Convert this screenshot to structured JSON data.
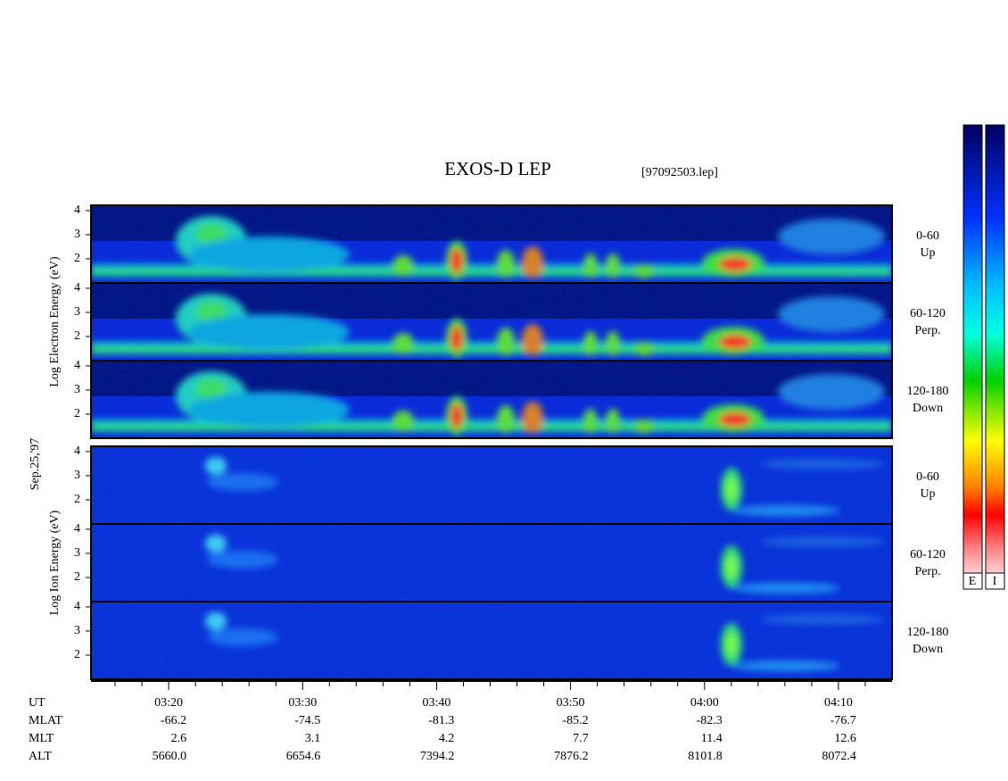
{
  "title": "EXOS-D LEP",
  "file": "[97092503.lep]",
  "date": "Sep.25,'97",
  "chart_data": [
    {
      "type": "spectrogram",
      "species": "electron",
      "ylabel": "Log Electron Energy (eV)",
      "ylim": [
        1,
        4.22
      ],
      "yticks": [
        2,
        3,
        4
      ],
      "panels": [
        {
          "range": "0-60",
          "direction": "Up"
        },
        {
          "range": "60-120",
          "direction": "Perp."
        },
        {
          "range": "120-180",
          "direction": "Down"
        }
      ]
    },
    {
      "type": "spectrogram",
      "species": "ion",
      "ylabel": "Log Ion Energy (eV)",
      "ylim": [
        1,
        4.22
      ],
      "yticks": [
        2,
        3,
        4
      ],
      "panels": [
        {
          "range": "0-60",
          "direction": "Up"
        },
        {
          "range": "60-120",
          "direction": "Perp."
        },
        {
          "range": "120-180",
          "direction": "Down"
        }
      ]
    }
  ],
  "time_axis": {
    "label": "UT",
    "xlim": [
      14.2,
      74
    ],
    "xticks": [
      {
        "value": 20,
        "label": "03:20"
      },
      {
        "value": 30,
        "label": "03:30"
      },
      {
        "value": 40,
        "label": "03:40"
      },
      {
        "value": 50,
        "label": "03:50"
      },
      {
        "value": 60,
        "label": "04:00"
      },
      {
        "value": 70,
        "label": "04:10"
      }
    ],
    "minor_xticks": [
      16,
      18,
      22,
      24,
      26,
      28,
      32,
      34,
      36,
      38,
      42,
      44,
      46,
      48,
      52,
      54,
      56,
      58,
      62,
      64,
      66,
      68,
      72
    ]
  },
  "orbit_rows": [
    {
      "name": "MLAT",
      "values": [
        "-66.2",
        "-74.5",
        "-81.3",
        "-85.2",
        "-82.3",
        "-76.7"
      ]
    },
    {
      "name": "MLT",
      "values": [
        "2.6",
        "3.1",
        "4.2",
        "7.7",
        "11.4",
        "12.6"
      ]
    },
    {
      "name": "ALT",
      "values": [
        "5660.0",
        "6654.6",
        "7394.2",
        "7876.2",
        "8101.8",
        "8072.4"
      ]
    }
  ],
  "colorbars": [
    "E",
    "I"
  ]
}
